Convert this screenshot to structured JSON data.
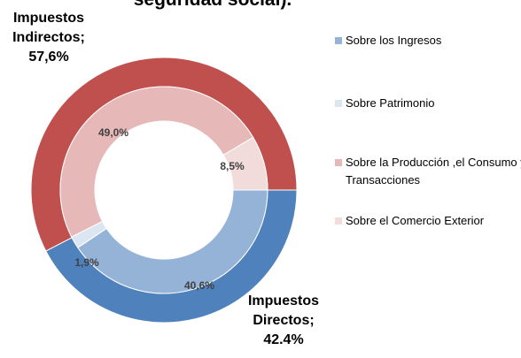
{
  "chart_data": {
    "type": "donut",
    "title": "seguridad social).",
    "rings": [
      {
        "categories": [
          "Impuestos Directos;",
          "Impuestos Indirectos;"
        ],
        "values": [
          42.4,
          57.6
        ],
        "value_labels": [
          "42.4%",
          "57,6%"
        ],
        "colors": [
          "#4f81bd",
          "#c0504d"
        ]
      },
      {
        "categories": [
          "Sobre los Ingresos",
          "Sobre Patrimonio",
          "Sobre la Producción ,el Consumo y Transacciones",
          "Sobre el Comercio Exterior"
        ],
        "values": [
          40.6,
          1.9,
          49.0,
          8.5
        ],
        "value_labels": [
          "40,6%",
          "1,9%",
          "49,0%",
          "8,5%"
        ],
        "colors": [
          "#95b3d7",
          "#dce6f2",
          "#e6b9b8",
          "#f2dcdb"
        ]
      }
    ],
    "legend": "right"
  }
}
